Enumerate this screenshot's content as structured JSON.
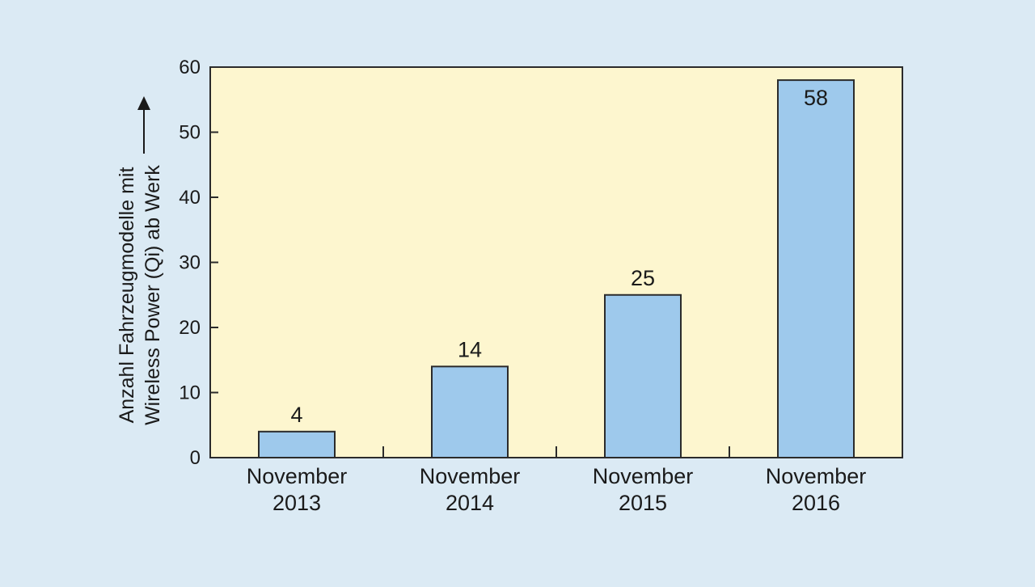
{
  "colors": {
    "page_background": "#dbeaf4",
    "plot_background": "#fdf6cf",
    "bar_fill": "#9ec9ec",
    "bar_stroke": "#2b2b2b",
    "axis": "#2b2b2b"
  },
  "chart_data": {
    "type": "bar",
    "title": "",
    "ylabel_lines": [
      "Anzahl Fahrzeugmodelle mit",
      "Wireless Power (Qi) ab Werk"
    ],
    "ylabel_arrow": "up",
    "xlabel": "",
    "categories": [
      [
        "November",
        "2013"
      ],
      [
        "November",
        "2014"
      ],
      [
        "November",
        "2015"
      ],
      [
        "November",
        "2016"
      ]
    ],
    "values": [
      4,
      14,
      25,
      58
    ],
    "data_labels": [
      "4",
      "14",
      "25",
      "58"
    ],
    "ylim": [
      0,
      60
    ],
    "yticks": [
      0,
      10,
      20,
      30,
      40,
      50,
      60
    ],
    "grid": false,
    "legend": "none"
  }
}
